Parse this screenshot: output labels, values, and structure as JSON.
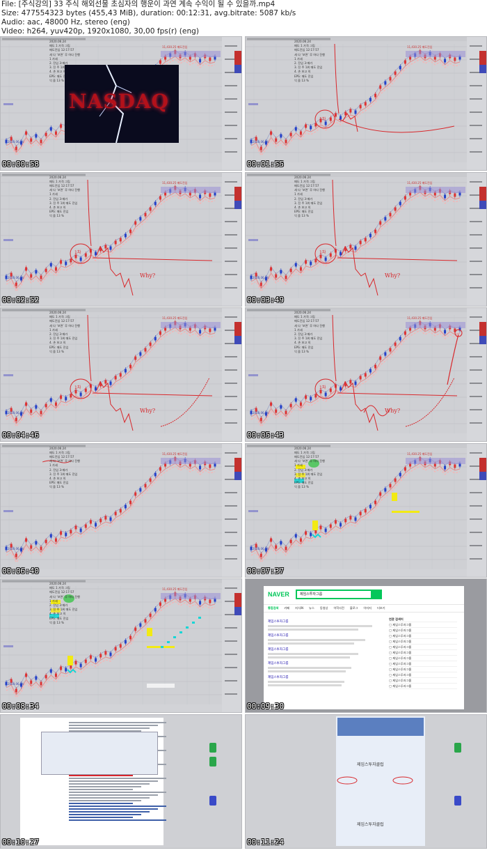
{
  "meta": {
    "file": "File: [주식강의] 33 주식 해외선물 초심자의 행운이 과연 계속 수익이 될 수 있을까.mp4",
    "size": "Size: 477554323 bytes (455,43 MiB), duration: 00:12:31, avg.bitrate: 5087 kb/s",
    "audio": "Audio: aac, 48000 Hz, stereo (eng)",
    "video": "Video: h264, yuv420p, 1920x1080, 30,00 fps(r) (eng)"
  },
  "chart_info": {
    "date": "2020.06.24",
    "line1": "매도 1 가격 그립",
    "line2": "매도진입 12:17:57",
    "line3": "세 다 ‘보면’ 루 하다 진행",
    "line4": "1 가세",
    "line5": "2. 진입 3:매가",
    "line6": "3. 진 주 1위 매도 진입",
    "line7": "4. 손 보고 의",
    "line8": "EPS: 매도 진입",
    "line9": "익 을 13 %"
  },
  "nasdaq_word": "NASDAQ",
  "frames": [
    {
      "time": "00:00:58",
      "scene": "chart-nasdaq"
    },
    {
      "time": "00:01:55",
      "scene": "chart-draw1"
    },
    {
      "time": "00:02:52",
      "scene": "chart-draw2"
    },
    {
      "time": "00:03:49",
      "scene": "chart-draw3"
    },
    {
      "time": "00:04:46",
      "scene": "chart-draw4"
    },
    {
      "time": "00:05:43",
      "scene": "chart-draw5"
    },
    {
      "time": "00:06:40",
      "scene": "chart-clean"
    },
    {
      "time": "00:07:37",
      "scene": "chart-highlight"
    },
    {
      "time": "00:08:34",
      "scene": "chart-highlight2"
    },
    {
      "time": "00:09:30",
      "scene": "naver"
    },
    {
      "time": "00:10:27",
      "scene": "document"
    },
    {
      "time": "00:11:24",
      "scene": "document2"
    }
  ],
  "naver": {
    "logo": "NAVER",
    "query": "제임스투자그룹",
    "tabs": [
      "통합검색",
      "카페",
      "지식iN",
      "뉴스",
      "동영상",
      "어학사전",
      "블로그",
      "이미지",
      "더보기"
    ],
    "result_title": "제임스투자그룹",
    "side_title": "연관 검색어"
  },
  "doc_label": "제임스투자클럽",
  "colors": {
    "chart_bg": "#cfd0d4",
    "naver_green": "#03c75a",
    "draw_red": "#d8262a",
    "highlight_yellow": "#f2ea14",
    "highlight_cyan": "#16d6d6"
  }
}
